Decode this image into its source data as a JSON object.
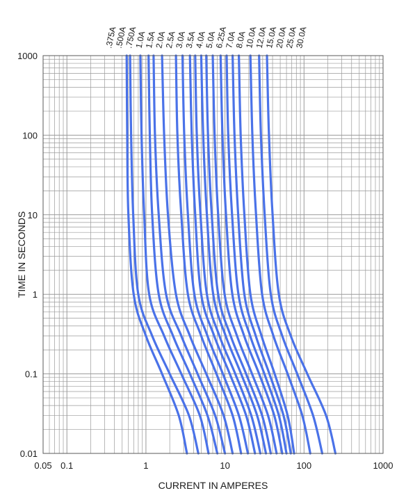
{
  "chart_data": {
    "type": "line",
    "title": "",
    "xlabel": "CURRENT IN AMPERES",
    "ylabel": "TIME IN SECONDS",
    "x_scale": "log",
    "y_scale": "log",
    "xlim": [
      0.05,
      1000
    ],
    "ylim": [
      0.01,
      1000
    ],
    "grid": true,
    "line_color": "#4a72e8",
    "grid_color": "#9a9a9a",
    "x_ticks": [
      {
        "value": 0.05,
        "label": "0.05"
      },
      {
        "value": 0.1,
        "label": "0.1"
      },
      {
        "value": 1,
        "label": "1"
      },
      {
        "value": 10,
        "label": "10"
      },
      {
        "value": 100,
        "label": "100"
      },
      {
        "value": 1000,
        "label": "1000"
      }
    ],
    "y_ticks": [
      {
        "value": 1000,
        "label": "1000"
      },
      {
        "value": 100,
        "label": "100"
      },
      {
        "value": 10,
        "label": "10"
      },
      {
        "value": 1,
        "label": "1"
      },
      {
        "value": 0.1,
        "label": "0.1"
      },
      {
        "value": 0.01,
        "label": "0.01"
      }
    ],
    "series": [
      {
        "name": ".375A",
        "x": [
          0.57,
          0.58,
          0.6,
          0.7,
          1.0,
          1.6,
          2.6,
          3.3
        ],
        "y": [
          1000,
          100,
          10,
          1,
          0.3,
          0.1,
          0.03,
          0.01
        ]
      },
      {
        "name": ".500A",
        "x": [
          0.63,
          0.65,
          0.69,
          0.8,
          1.2,
          2.0,
          3.5,
          4.6
        ],
        "y": [
          1000,
          100,
          10,
          1,
          0.3,
          0.1,
          0.03,
          0.01
        ]
      },
      {
        "name": ".750A",
        "x": [
          0.85,
          0.88,
          0.95,
          1.1,
          1.7,
          2.8,
          4.8,
          6.2
        ],
        "y": [
          1000,
          100,
          10,
          1,
          0.3,
          0.1,
          0.03,
          0.01
        ]
      },
      {
        "name": "1.0A",
        "x": [
          1.08,
          1.12,
          1.2,
          1.45,
          2.2,
          3.6,
          6.0,
          8.0
        ],
        "y": [
          1000,
          100,
          10,
          1,
          0.3,
          0.1,
          0.03,
          0.01
        ]
      },
      {
        "name": "1.5A",
        "x": [
          1.25,
          1.3,
          1.45,
          1.8,
          2.8,
          4.5,
          7.5,
          10.0
        ],
        "y": [
          1000,
          100,
          10,
          1,
          0.3,
          0.1,
          0.03,
          0.01
        ]
      },
      {
        "name": "2.0A",
        "x": [
          1.6,
          1.7,
          1.9,
          2.4,
          3.6,
          5.8,
          9.6,
          12.5
        ],
        "y": [
          1000,
          100,
          10,
          1,
          0.3,
          0.1,
          0.03,
          0.01
        ]
      },
      {
        "name": "2.5A",
        "x": [
          2.4,
          2.5,
          2.8,
          3.4,
          5.0,
          7.8,
          12.5,
          16.0
        ],
        "y": [
          1000,
          100,
          10,
          1,
          0.3,
          0.1,
          0.03,
          0.01
        ]
      },
      {
        "name": "3.0A",
        "x": [
          2.9,
          3.05,
          3.4,
          4.1,
          6.0,
          9.4,
          15.0,
          19.5
        ],
        "y": [
          1000,
          100,
          10,
          1,
          0.3,
          0.1,
          0.03,
          0.01
        ]
      },
      {
        "name": "3.5A",
        "x": [
          3.6,
          3.8,
          4.2,
          5.0,
          7.3,
          11.5,
          18.5,
          24.0
        ],
        "y": [
          1000,
          100,
          10,
          1,
          0.3,
          0.1,
          0.03,
          0.01
        ]
      },
      {
        "name": "4.0A",
        "x": [
          4.2,
          4.4,
          4.9,
          5.9,
          8.5,
          13.5,
          21.5,
          28.0
        ],
        "y": [
          1000,
          100,
          10,
          1,
          0.3,
          0.1,
          0.03,
          0.01
        ]
      },
      {
        "name": "5.0A",
        "x": [
          5.0,
          5.3,
          5.9,
          7.1,
          10.2,
          16.0,
          25.5,
          33.0
        ],
        "y": [
          1000,
          100,
          10,
          1,
          0.3,
          0.1,
          0.03,
          0.01
        ]
      },
      {
        "name": "6.25A",
        "x": [
          5.8,
          6.1,
          6.8,
          8.2,
          11.8,
          18.5,
          29.5,
          38.0
        ],
        "y": [
          1000,
          100,
          10,
          1,
          0.3,
          0.1,
          0.03,
          0.01
        ]
      },
      {
        "name": "7.0A",
        "x": [
          7.0,
          7.4,
          8.2,
          9.9,
          14.2,
          22.0,
          35.0,
          45.0
        ],
        "y": [
          1000,
          100,
          10,
          1,
          0.3,
          0.1,
          0.03,
          0.01
        ]
      },
      {
        "name": "8.0A",
        "x": [
          8.8,
          9.3,
          10.3,
          12.4,
          17.5,
          27.0,
          42.0,
          53.0
        ],
        "y": [
          1000,
          100,
          10,
          1,
          0.3,
          0.1,
          0.03,
          0.01
        ]
      },
      {
        "name": "10.0A",
        "x": [
          10.5,
          11.0,
          12.3,
          14.8,
          20.8,
          31.5,
          48.0,
          60.0
        ],
        "y": [
          1000,
          100,
          10,
          1,
          0.3,
          0.1,
          0.03,
          0.01
        ]
      },
      {
        "name": "12.0A",
        "x": [
          12.5,
          13.2,
          14.7,
          17.6,
          24.5,
          36.5,
          55.0,
          68.0
        ],
        "y": [
          1000,
          100,
          10,
          1,
          0.3,
          0.1,
          0.03,
          0.01
        ]
      },
      {
        "name": "15.0A",
        "x": [
          15.0,
          15.8,
          17.6,
          21.0,
          29.0,
          42.5,
          62.0,
          75.0
        ],
        "y": [
          1000,
          100,
          10,
          1,
          0.3,
          0.1,
          0.03,
          0.01
        ]
      },
      {
        "name": "20.0A",
        "x": [
          21.0,
          22.2,
          24.7,
          29.5,
          41.0,
          62.0,
          95.0,
          120.0
        ],
        "y": [
          1000,
          100,
          10,
          1,
          0.3,
          0.1,
          0.03,
          0.01
        ]
      },
      {
        "name": "25.0A",
        "x": [
          27.0,
          28.5,
          31.8,
          38.0,
          53.0,
          82.0,
          130.0,
          170.0
        ],
        "y": [
          1000,
          100,
          10,
          1,
          0.3,
          0.1,
          0.03,
          0.01
        ]
      },
      {
        "name": "30.0A",
        "x": [
          34.0,
          36.0,
          40.0,
          48.0,
          68.0,
          110.0,
          190.0,
          250.0
        ],
        "y": [
          1000,
          100,
          10,
          1,
          0.3,
          0.1,
          0.03,
          0.01
        ]
      }
    ]
  }
}
